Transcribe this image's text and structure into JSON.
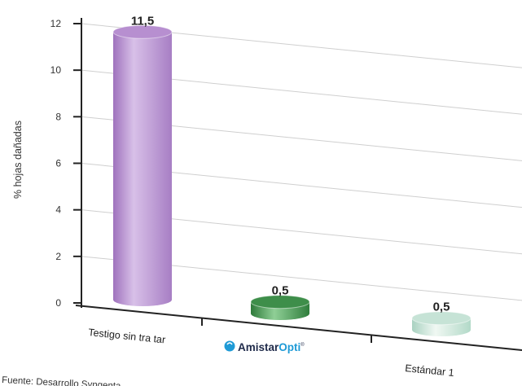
{
  "chart_data": {
    "type": "bar",
    "categories": [
      "Testigo sin tra tar",
      "AmistarOpti",
      "Estándar 1"
    ],
    "values": [
      11.5,
      0.5,
      0.5
    ],
    "value_labels": [
      "11,5",
      "0,5",
      "0,5"
    ],
    "ylabel": "% hojas dañadas",
    "xlabel": "",
    "ylim": [
      0,
      12
    ],
    "yticks": [
      0,
      2,
      4,
      6,
      8,
      10,
      12
    ],
    "grid": true,
    "bar_colors": [
      "#b78fd0",
      "#3e8e4a",
      "#c6e3d6"
    ]
  },
  "logo": {
    "brand_main": "Amistar",
    "brand_sub": "Opti",
    "mark": "®",
    "colors": {
      "main": "#1f2a4a",
      "sub": "#1e9ad6"
    }
  },
  "source": "Fuente: Desarrollo Syngenta"
}
